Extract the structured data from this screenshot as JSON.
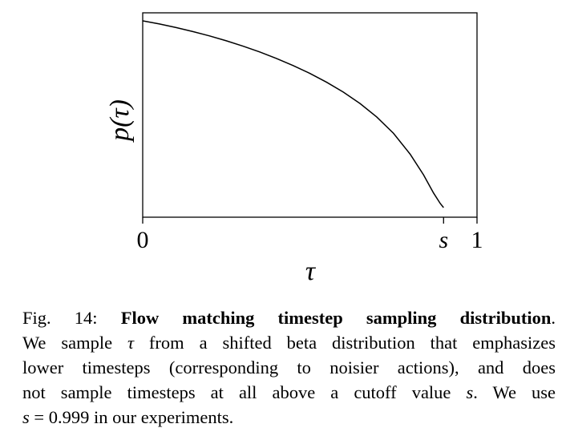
{
  "chart_data": {
    "type": "line",
    "title": "",
    "xlabel": "τ",
    "ylabel": "p(τ)",
    "xlim": [
      0,
      1
    ],
    "x_ticks": [
      {
        "value": 0,
        "label": "0"
      },
      {
        "value": 0.9,
        "label": "s"
      },
      {
        "value": 1,
        "label": "1"
      }
    ],
    "y_ticks": [],
    "grid": false,
    "legend": "none",
    "cutoff_s": 0.9,
    "series": [
      {
        "x": [
          0,
          0.05,
          0.1,
          0.15,
          0.2,
          0.25,
          0.3,
          0.35,
          0.4,
          0.45,
          0.5,
          0.55,
          0.6,
          0.65,
          0.7,
          0.75,
          0.8,
          0.84,
          0.87,
          0.89,
          0.9
        ],
        "y": [
          1.5,
          1.475,
          1.446,
          1.414,
          1.379,
          1.34,
          1.297,
          1.25,
          1.198,
          1.141,
          1.078,
          1.007,
          0.928,
          0.836,
          0.728,
          0.597,
          0.429,
          0.263,
          0.117,
          0.033,
          0.0
        ]
      }
    ]
  },
  "caption": {
    "fig_label": "Fig. 14:",
    "bold_title": "Flow matching timestep sampling distribution",
    "l1_end": ".",
    "l2_a": "We sample ",
    "l2_var": "τ",
    "l2_b": " from a shifted beta distribution that emphasizes",
    "l3": "lower timesteps (corresponding to noisier actions), and does",
    "l4_a": "not sample timesteps at all above a cutoff value ",
    "l4_var": "s",
    "l4_b": ". We use",
    "l5_var": "s",
    "l5_b": " = 0.999 in our experiments."
  }
}
